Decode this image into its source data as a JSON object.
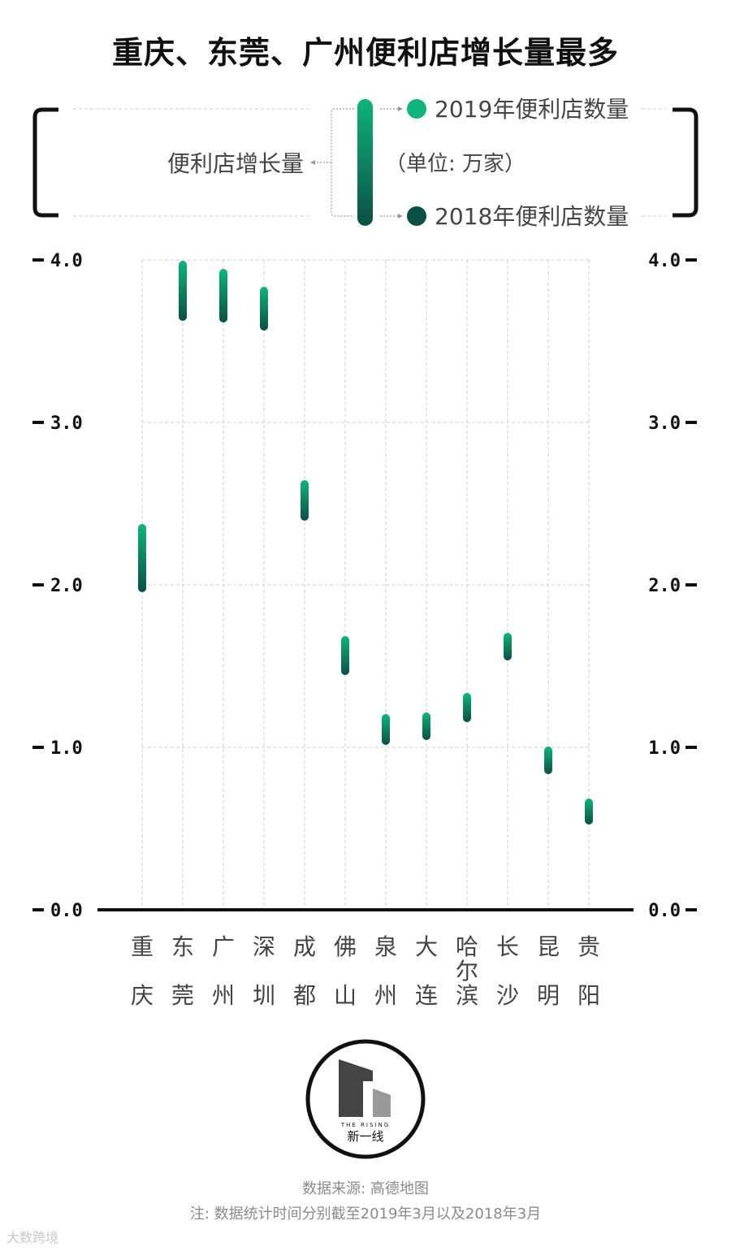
{
  "title": "重庆、东莞、广州便利店增长量最多",
  "legend": {
    "growth_label": "便利店增长量",
    "label_2019": "2019年便利店数量",
    "unit": "（单位: 万家）",
    "label_2018": "2018年便利店数量"
  },
  "colors": {
    "color_2019": "#0fb57a",
    "color_2018": "#0b4f45",
    "axis": "#111111",
    "grid": "#cccccc"
  },
  "chart_data": {
    "type": "range",
    "categories": [
      "重庆",
      "东莞",
      "广州",
      "深圳",
      "成都",
      "佛山",
      "泉州",
      "大连",
      "哈尔滨",
      "长沙",
      "昆明",
      "贵阳"
    ],
    "series": [
      {
        "name": "2019年便利店数量",
        "values": [
          2.35,
          3.97,
          3.92,
          3.81,
          2.62,
          1.66,
          1.18,
          1.19,
          1.31,
          1.68,
          0.98,
          0.66
        ]
      },
      {
        "name": "2018年便利店数量",
        "values": [
          1.98,
          3.65,
          3.64,
          3.59,
          2.42,
          1.47,
          1.04,
          1.07,
          1.18,
          1.56,
          0.86,
          0.55
        ]
      }
    ],
    "yticks": [
      "4.0",
      "3.0",
      "2.0",
      "1.0",
      "0.0"
    ],
    "ylim": [
      0,
      4
    ],
    "grid": true
  },
  "logo": {
    "small_text": "THE RISING",
    "name": "新一线"
  },
  "footer": {
    "source": "数据来源: 高德地图",
    "note": "注: 数据统计时间分别截至2019年3月以及2018年3月",
    "watermark": "大数跨境"
  }
}
